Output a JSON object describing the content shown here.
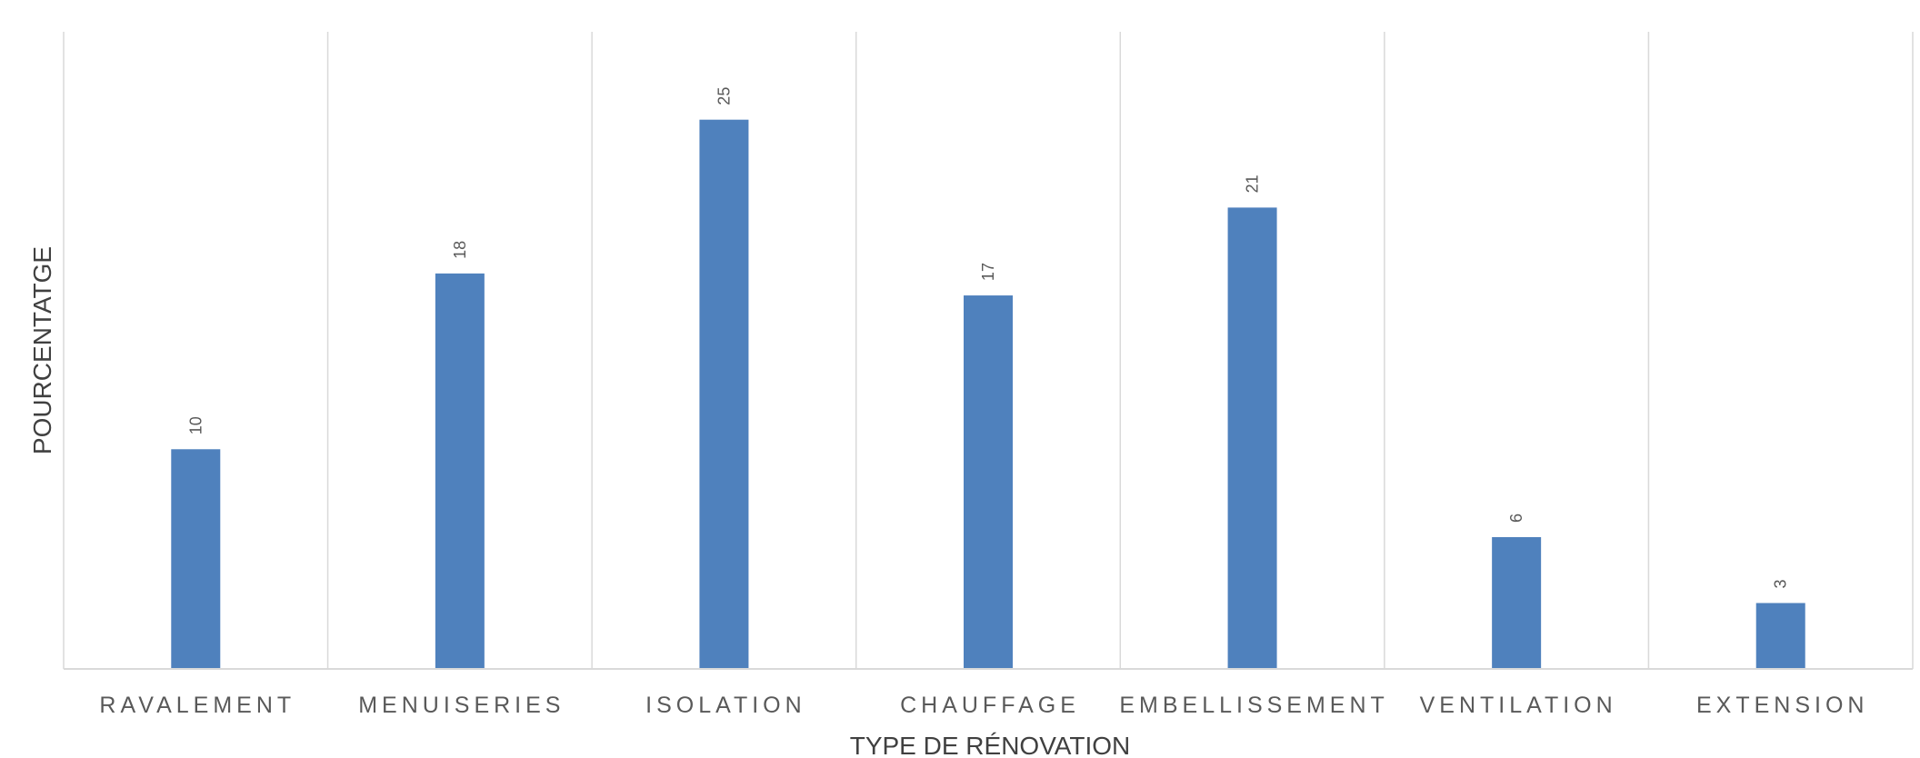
{
  "chart_data": {
    "type": "bar",
    "categories": [
      "RAVALEMENT",
      "MENUISERIES",
      "ISOLATION",
      "CHAUFFAGE",
      "EMBELLISSEMENT",
      "VENTILATION",
      "EXTENSION"
    ],
    "values": [
      10,
      18,
      25,
      17,
      21,
      6,
      3
    ],
    "data_labels": [
      "10",
      "18",
      "25",
      "17",
      "21",
      "6",
      "3"
    ],
    "xlabel": "TYPE DE RÉNOVATION",
    "ylabel": "POURCENTATGE",
    "ylim": [
      0,
      29
    ],
    "grid": "vertical category separators",
    "legend": "none",
    "bar_color": "#4f81bd",
    "gridline_color": "#d9d9d9",
    "text_color": "#595959"
  }
}
